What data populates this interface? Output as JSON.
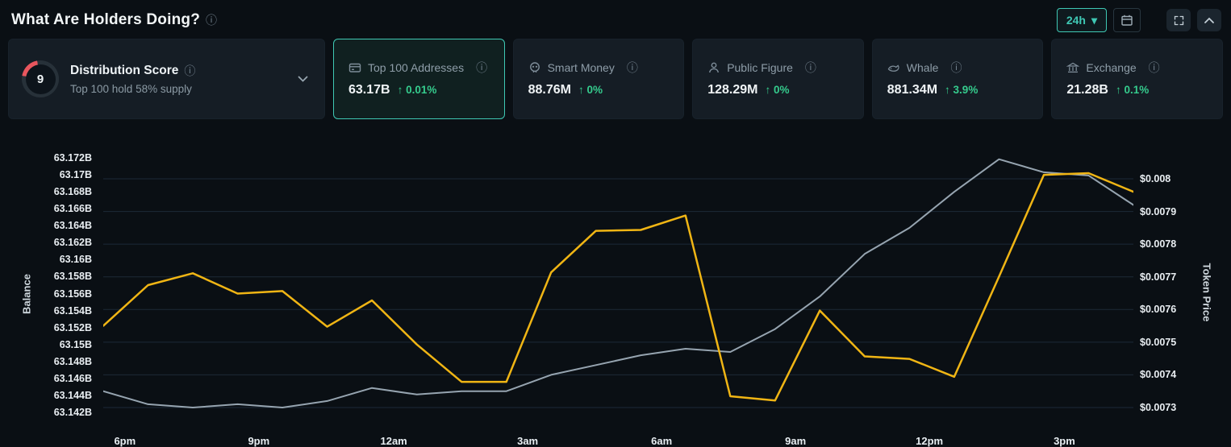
{
  "header": {
    "title": "What Are Holders Doing?",
    "timeframe_label": "24h"
  },
  "icons": {
    "info": "ⓘ",
    "caret_down": "▾"
  },
  "colors": {
    "accent_teal": "#3fc8b4",
    "positive_green": "#35cb8d",
    "score_arc_red": "#e8565e",
    "background": "#0a0f14",
    "card_background": "#151d25",
    "balance_line": "#f0b514",
    "price_line": "#96a4b0",
    "gridline": "#1c2a37"
  },
  "cards": {
    "distribution": {
      "score": "9",
      "title": "Distribution Score",
      "subtitle": "Top 100 hold 58% supply"
    },
    "metrics": [
      {
        "label": "Top 100 Addresses",
        "value": "63.17B",
        "change": "↑ 0.01%",
        "selected": true
      },
      {
        "label": "Smart Money",
        "value": "88.76M",
        "change": "↑ 0%",
        "selected": false
      },
      {
        "label": "Public Figure",
        "value": "128.29M",
        "change": "↑ 0%",
        "selected": false
      },
      {
        "label": "Whale",
        "value": "881.34M",
        "change": "↑ 3.9%",
        "selected": false
      },
      {
        "label": "Exchange",
        "value": "21.28B",
        "change": "↑ 0.1%",
        "selected": false
      }
    ]
  },
  "chart_data": {
    "type": "line",
    "title": "Top 100 Addresses balance vs token price over 24h",
    "legend": "none",
    "grid": "horizontal",
    "x_ticks": [
      {
        "label": "6pm",
        "f": 0.021
      },
      {
        "label": "9pm",
        "f": 0.151
      },
      {
        "label": "12am",
        "f": 0.282
      },
      {
        "label": "3am",
        "f": 0.412
      },
      {
        "label": "6am",
        "f": 0.542
      },
      {
        "label": "9am",
        "f": 0.672
      },
      {
        "label": "12pm",
        "f": 0.802
      },
      {
        "label": "3pm",
        "f": 0.933
      }
    ],
    "left_axis": {
      "label": "Balance",
      "min": 63.142,
      "max": 63.172,
      "ticks": [
        63.172,
        63.17,
        63.168,
        63.166,
        63.164,
        63.162,
        63.16,
        63.158,
        63.156,
        63.154,
        63.152,
        63.15,
        63.148,
        63.146,
        63.144,
        63.142
      ],
      "tick_labels": [
        "63.172B",
        "63.17B",
        "63.168B",
        "63.166B",
        "63.164B",
        "63.162B",
        "63.16B",
        "63.158B",
        "63.156B",
        "63.154B",
        "63.152B",
        "63.15B",
        "63.148B",
        "63.146B",
        "63.144B",
        "63.142B"
      ]
    },
    "right_axis": {
      "label": "Token Price",
      "min": 0.0073,
      "max": 0.008,
      "ticks": [
        0.008,
        0.0079,
        0.0078,
        0.0077,
        0.0076,
        0.0075,
        0.0074,
        0.0073
      ],
      "tick_labels": [
        "$0.008",
        "$0.0079",
        "$0.0078",
        "$0.0077",
        "$0.0076",
        "$0.0075",
        "$0.0074",
        "$0.0073"
      ]
    },
    "series": [
      {
        "name": "Top 100 Addresses Balance",
        "axis": "left",
        "color": "#f0b514",
        "values": [
          63.1522,
          63.157,
          63.1584,
          63.156,
          63.1563,
          63.1521,
          63.1552,
          63.15,
          63.1456,
          63.1456,
          63.1585,
          63.1634,
          63.1635,
          63.1652,
          63.1439,
          63.1434,
          63.154,
          63.1486,
          63.1483,
          63.1462,
          63.158,
          63.17,
          63.1702,
          63.168
        ]
      },
      {
        "name": "Token Price",
        "axis": "right",
        "color": "#96a4b0",
        "values": [
          0.00735,
          0.00731,
          0.0073,
          0.00731,
          0.0073,
          0.00732,
          0.00736,
          0.00734,
          0.00735,
          0.00735,
          0.0074,
          0.00743,
          0.00746,
          0.00748,
          0.00747,
          0.00754,
          0.00764,
          0.00777,
          0.00785,
          0.00796,
          0.00806,
          0.00802,
          0.00801,
          0.00792
        ]
      }
    ]
  }
}
